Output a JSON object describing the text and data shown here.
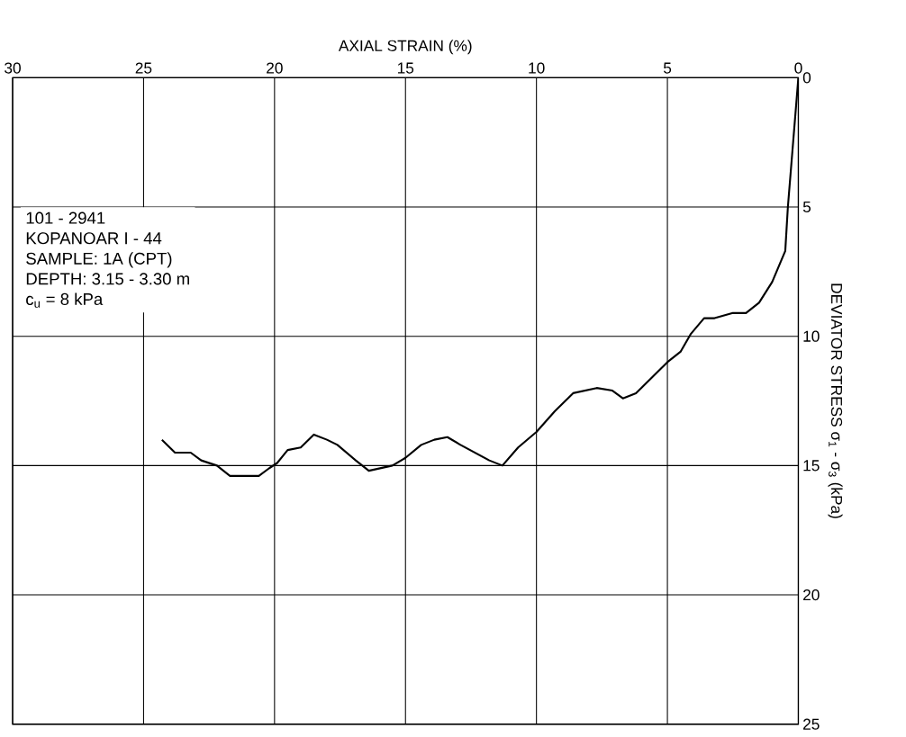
{
  "chart_data": {
    "type": "line",
    "xlabel": "AXIAL STRAIN (%)",
    "ylabel": "DEVIATOR STRESS σ$_{1}$ - σ$_{3}$ (kPa)",
    "x": [
      0,
      0.4,
      0.5,
      1.0,
      1.5,
      2.0,
      2.5,
      3.2,
      3.6,
      4.1,
      4.5,
      5.0,
      5.6,
      6.2,
      6.7,
      7.1,
      7.7,
      8.6,
      9.3,
      10.0,
      10.7,
      11.3,
      11.8,
      12.9,
      13.4,
      13.9,
      14.4,
      15.0,
      15.5,
      16.4,
      16.9,
      17.6,
      18.0,
      18.5,
      19.0,
      19.5,
      19.9,
      20.2,
      20.6,
      21.7,
      22.2,
      22.8,
      23.2,
      23.8,
      24.3
    ],
    "series": [
      {
        "color": "#000000",
        "values": [
          0,
          5.0,
          6.7,
          7.9,
          8.7,
          9.1,
          9.1,
          9.3,
          9.3,
          9.9,
          10.6,
          11.0,
          11.6,
          12.2,
          12.4,
          12.1,
          12.0,
          12.2,
          12.9,
          13.7,
          14.3,
          15.0,
          14.8,
          14.2,
          13.9,
          14.0,
          14.2,
          14.7,
          15.0,
          15.2,
          14.8,
          14.2,
          14.0,
          13.8,
          14.3,
          14.4,
          14.9,
          15.1,
          15.4,
          15.4,
          15.0,
          14.8,
          14.5,
          14.5,
          14.0
        ]
      }
    ],
    "xlim": [
      30,
      0
    ],
    "ylim": [
      25,
      0
    ],
    "xticks": [
      0,
      5,
      10,
      15,
      20,
      25,
      30
    ],
    "yticks": [
      0,
      5,
      10,
      15,
      20,
      25
    ],
    "grid": true,
    "marker": "none",
    "line_style": "solid",
    "annotations": [
      "101 - 2941",
      "KOPANOAR I - 44",
      "SAMPLE: 1A (CPT)",
      "DEPTH: 3.15 - 3.30 m",
      "c$_{u}$ = 8 kPa"
    ]
  }
}
